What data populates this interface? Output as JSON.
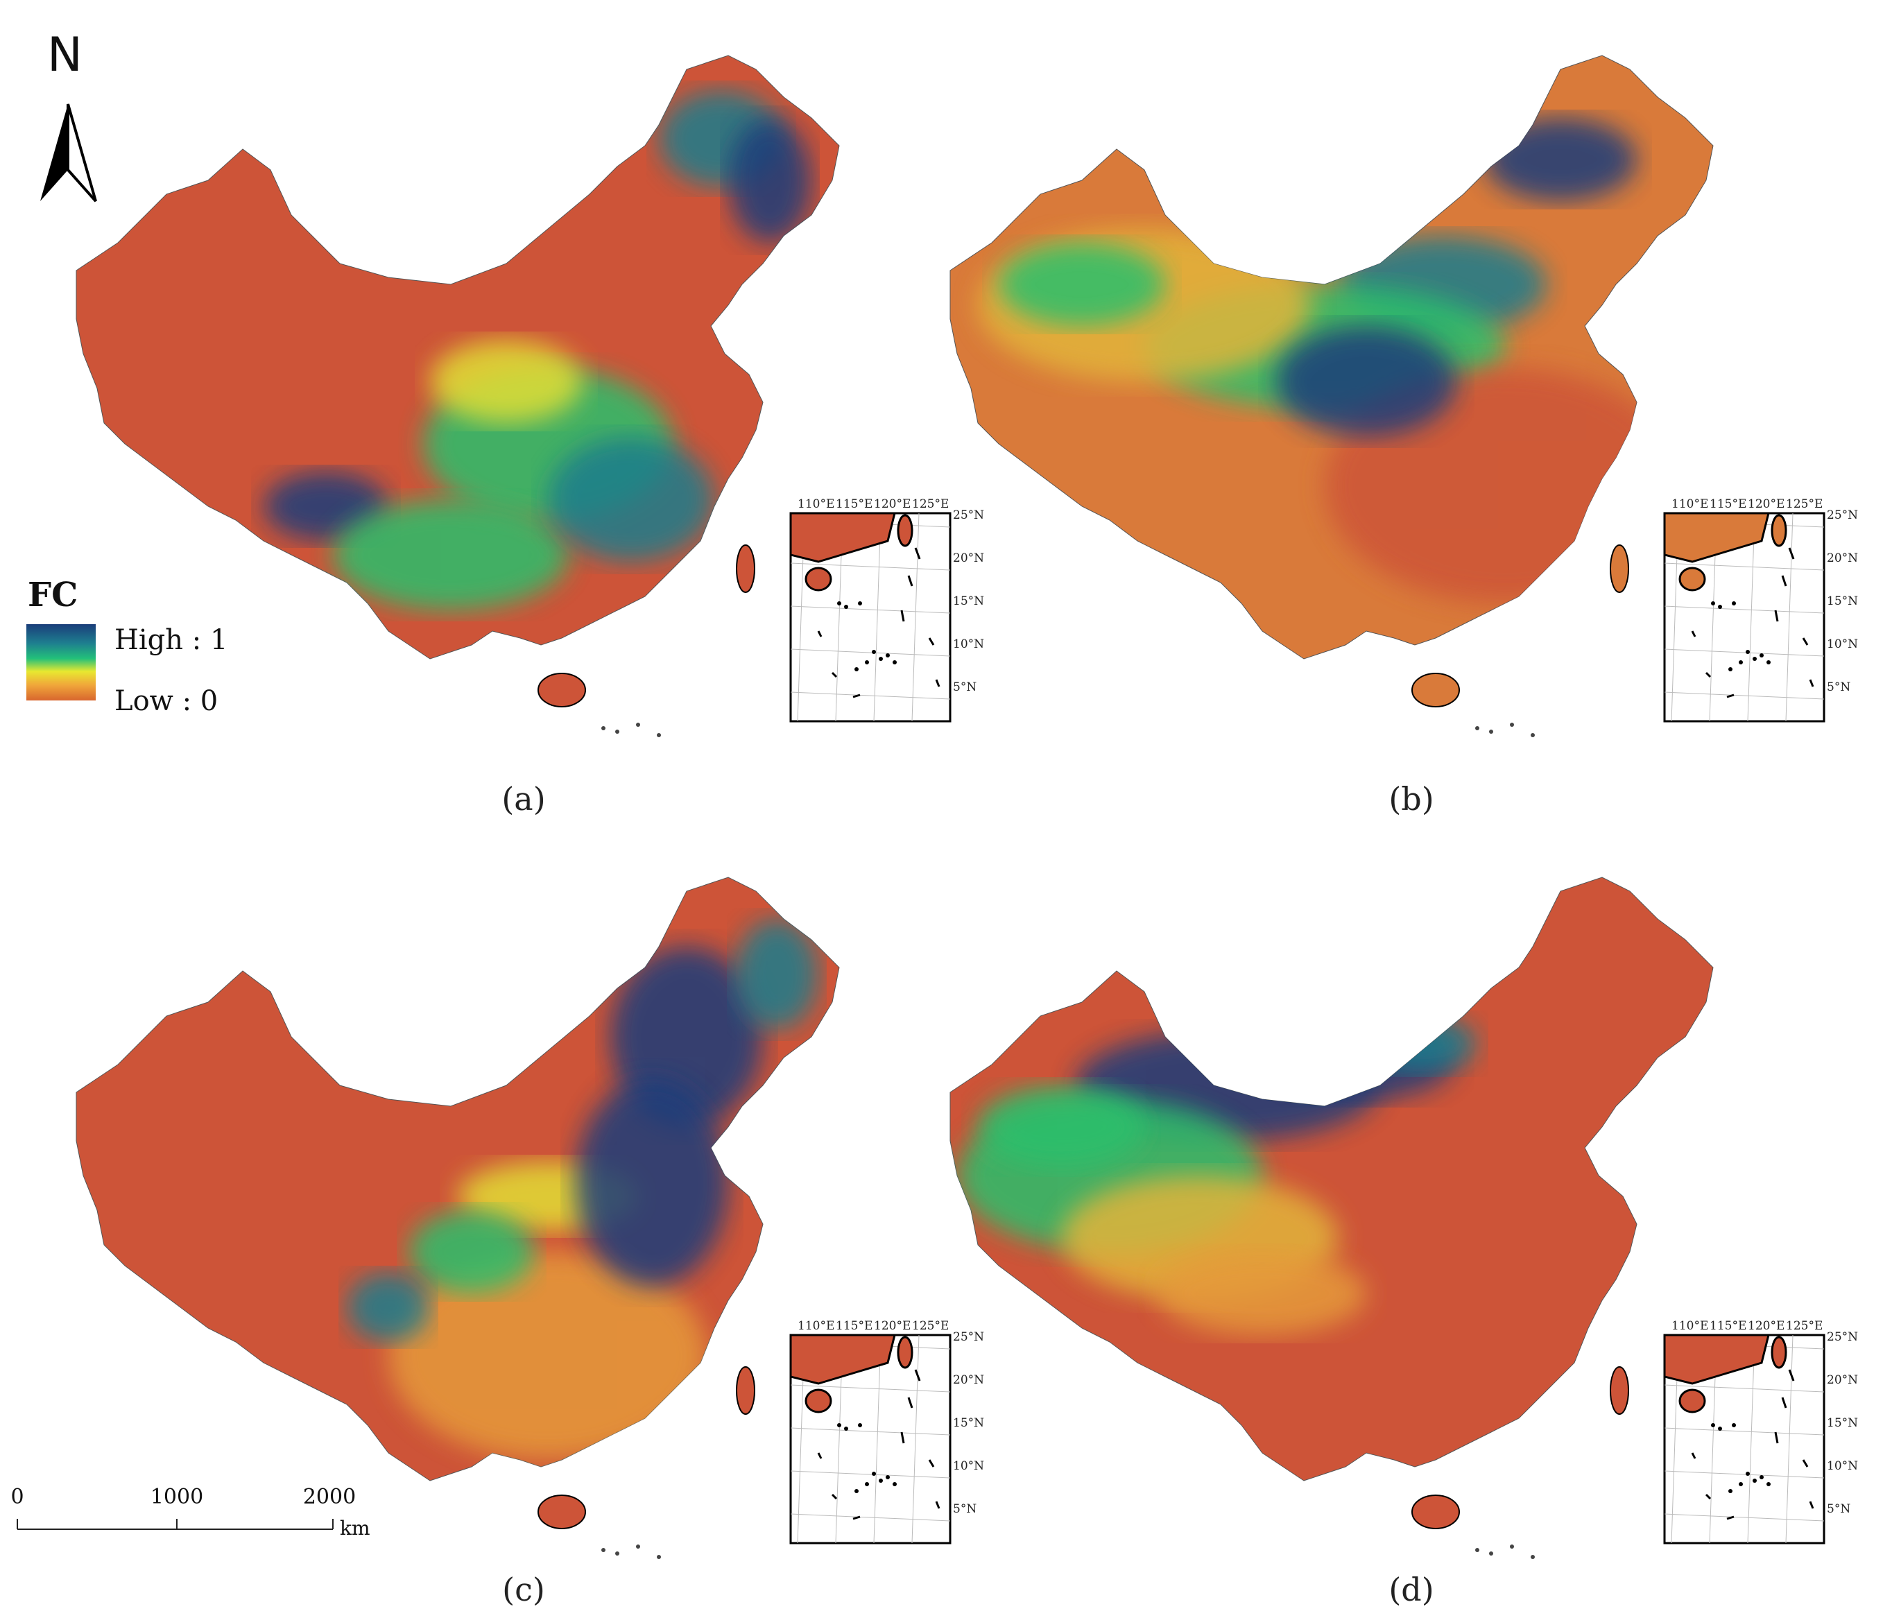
{
  "north_arrow": {
    "label": "N"
  },
  "legend": {
    "title": "FC",
    "high_label": "High : 1",
    "low_label": "Low : 0",
    "color_ramp": [
      "#1a3d7a",
      "#1e7f8f",
      "#23c07a",
      "#e8e830",
      "#f0a63a",
      "#d8662e"
    ]
  },
  "scale_bar": {
    "ticks": [
      "0",
      "1000",
      "2000"
    ],
    "unit": "km"
  },
  "inset": {
    "lon_labels": [
      "110°E",
      "115°E",
      "120°E",
      "125°E"
    ],
    "lat_labels": [
      "25°N",
      "20°N",
      "15°N",
      "10°N",
      "5°N"
    ]
  },
  "panels": [
    {
      "id": "a",
      "caption": "(a)",
      "base_color": "#cd5438",
      "patches": [
        {
          "c": "#1d7d8c"
        },
        {
          "c": "#1a3d7a"
        },
        {
          "c": "#2cbf6c"
        },
        {
          "c": "#e2de35"
        },
        {
          "c": "#1a3d7a"
        },
        {
          "c": "#2cbf6c"
        },
        {
          "c": "#1d7d8c"
        }
      ]
    },
    {
      "id": "b",
      "caption": "(b)",
      "base_color": "#d97a3a",
      "patches": [
        {
          "c": "#1a3d7a"
        },
        {
          "c": "#1d7d8c"
        },
        {
          "c": "#2cbf6c"
        },
        {
          "c": "#cd5438"
        },
        {
          "c": "#e2b43a"
        },
        {
          "c": "#1a3d7a"
        },
        {
          "c": "#2cbf6c"
        }
      ]
    },
    {
      "id": "c",
      "caption": "(c)",
      "base_color": "#cd5438",
      "patches": [
        {
          "c": "#1a3d7a"
        },
        {
          "c": "#1d7d8c"
        },
        {
          "c": "#e2de35"
        },
        {
          "c": "#e59a3a"
        },
        {
          "c": "#1a3d7a"
        },
        {
          "c": "#2cbf6c"
        },
        {
          "c": "#1d7d8c"
        }
      ]
    },
    {
      "id": "d",
      "caption": "(d)",
      "base_color": "#cd5438",
      "patches": [
        {
          "c": "#1a3d7a"
        },
        {
          "c": "#1a3d7a"
        },
        {
          "c": "#2cbf6c"
        },
        {
          "c": "#e2b43a"
        },
        {
          "c": "#1d7d8c"
        },
        {
          "c": "#e59a3a"
        },
        {
          "c": "#2cbf6c"
        }
      ]
    }
  ]
}
